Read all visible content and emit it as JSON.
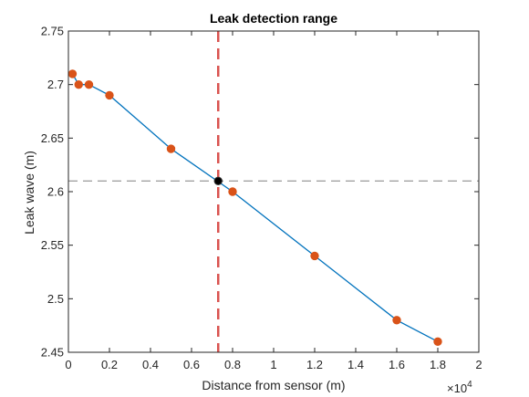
{
  "chart_data": {
    "type": "line",
    "title": "Leak detection range",
    "xlabel": "Distance from sensor (m)",
    "ylabel": "Leak wave (m)",
    "x_exponent_label": "×10",
    "x_exponent_power": "4",
    "xlim": [
      0,
      20000
    ],
    "ylim": [
      2.45,
      2.75
    ],
    "x_ticks": [
      0,
      2000,
      4000,
      6000,
      8000,
      10000,
      12000,
      14000,
      16000,
      18000,
      20000
    ],
    "x_tick_labels": [
      "0",
      "0.2",
      "0.4",
      "0.6",
      "0.8",
      "1",
      "1.2",
      "1.4",
      "1.6",
      "1.8",
      "2"
    ],
    "y_ticks": [
      2.45,
      2.5,
      2.55,
      2.6,
      2.65,
      2.7,
      2.75
    ],
    "y_tick_labels": [
      "2.45",
      "2.5",
      "2.55",
      "2.6",
      "2.65",
      "2.7",
      "2.75"
    ],
    "grid": false,
    "series": [
      {
        "x": [
          200,
          500,
          1000,
          2000,
          5000,
          8000,
          12000,
          16000,
          18000
        ],
        "y": [
          2.71,
          2.7,
          2.7,
          2.69,
          2.64,
          2.6,
          2.54,
          2.48,
          2.46
        ],
        "line_color": "#0072BD",
        "marker_color": "#D95319"
      }
    ],
    "detection_point": {
      "x": 7300,
      "y": 2.61,
      "color": "#000000"
    },
    "vertical_line": {
      "x": 7300,
      "color": "#D9534F",
      "style": "dashed"
    },
    "horizontal_line": {
      "y": 2.61,
      "color": "#808080",
      "style": "dashed"
    }
  }
}
